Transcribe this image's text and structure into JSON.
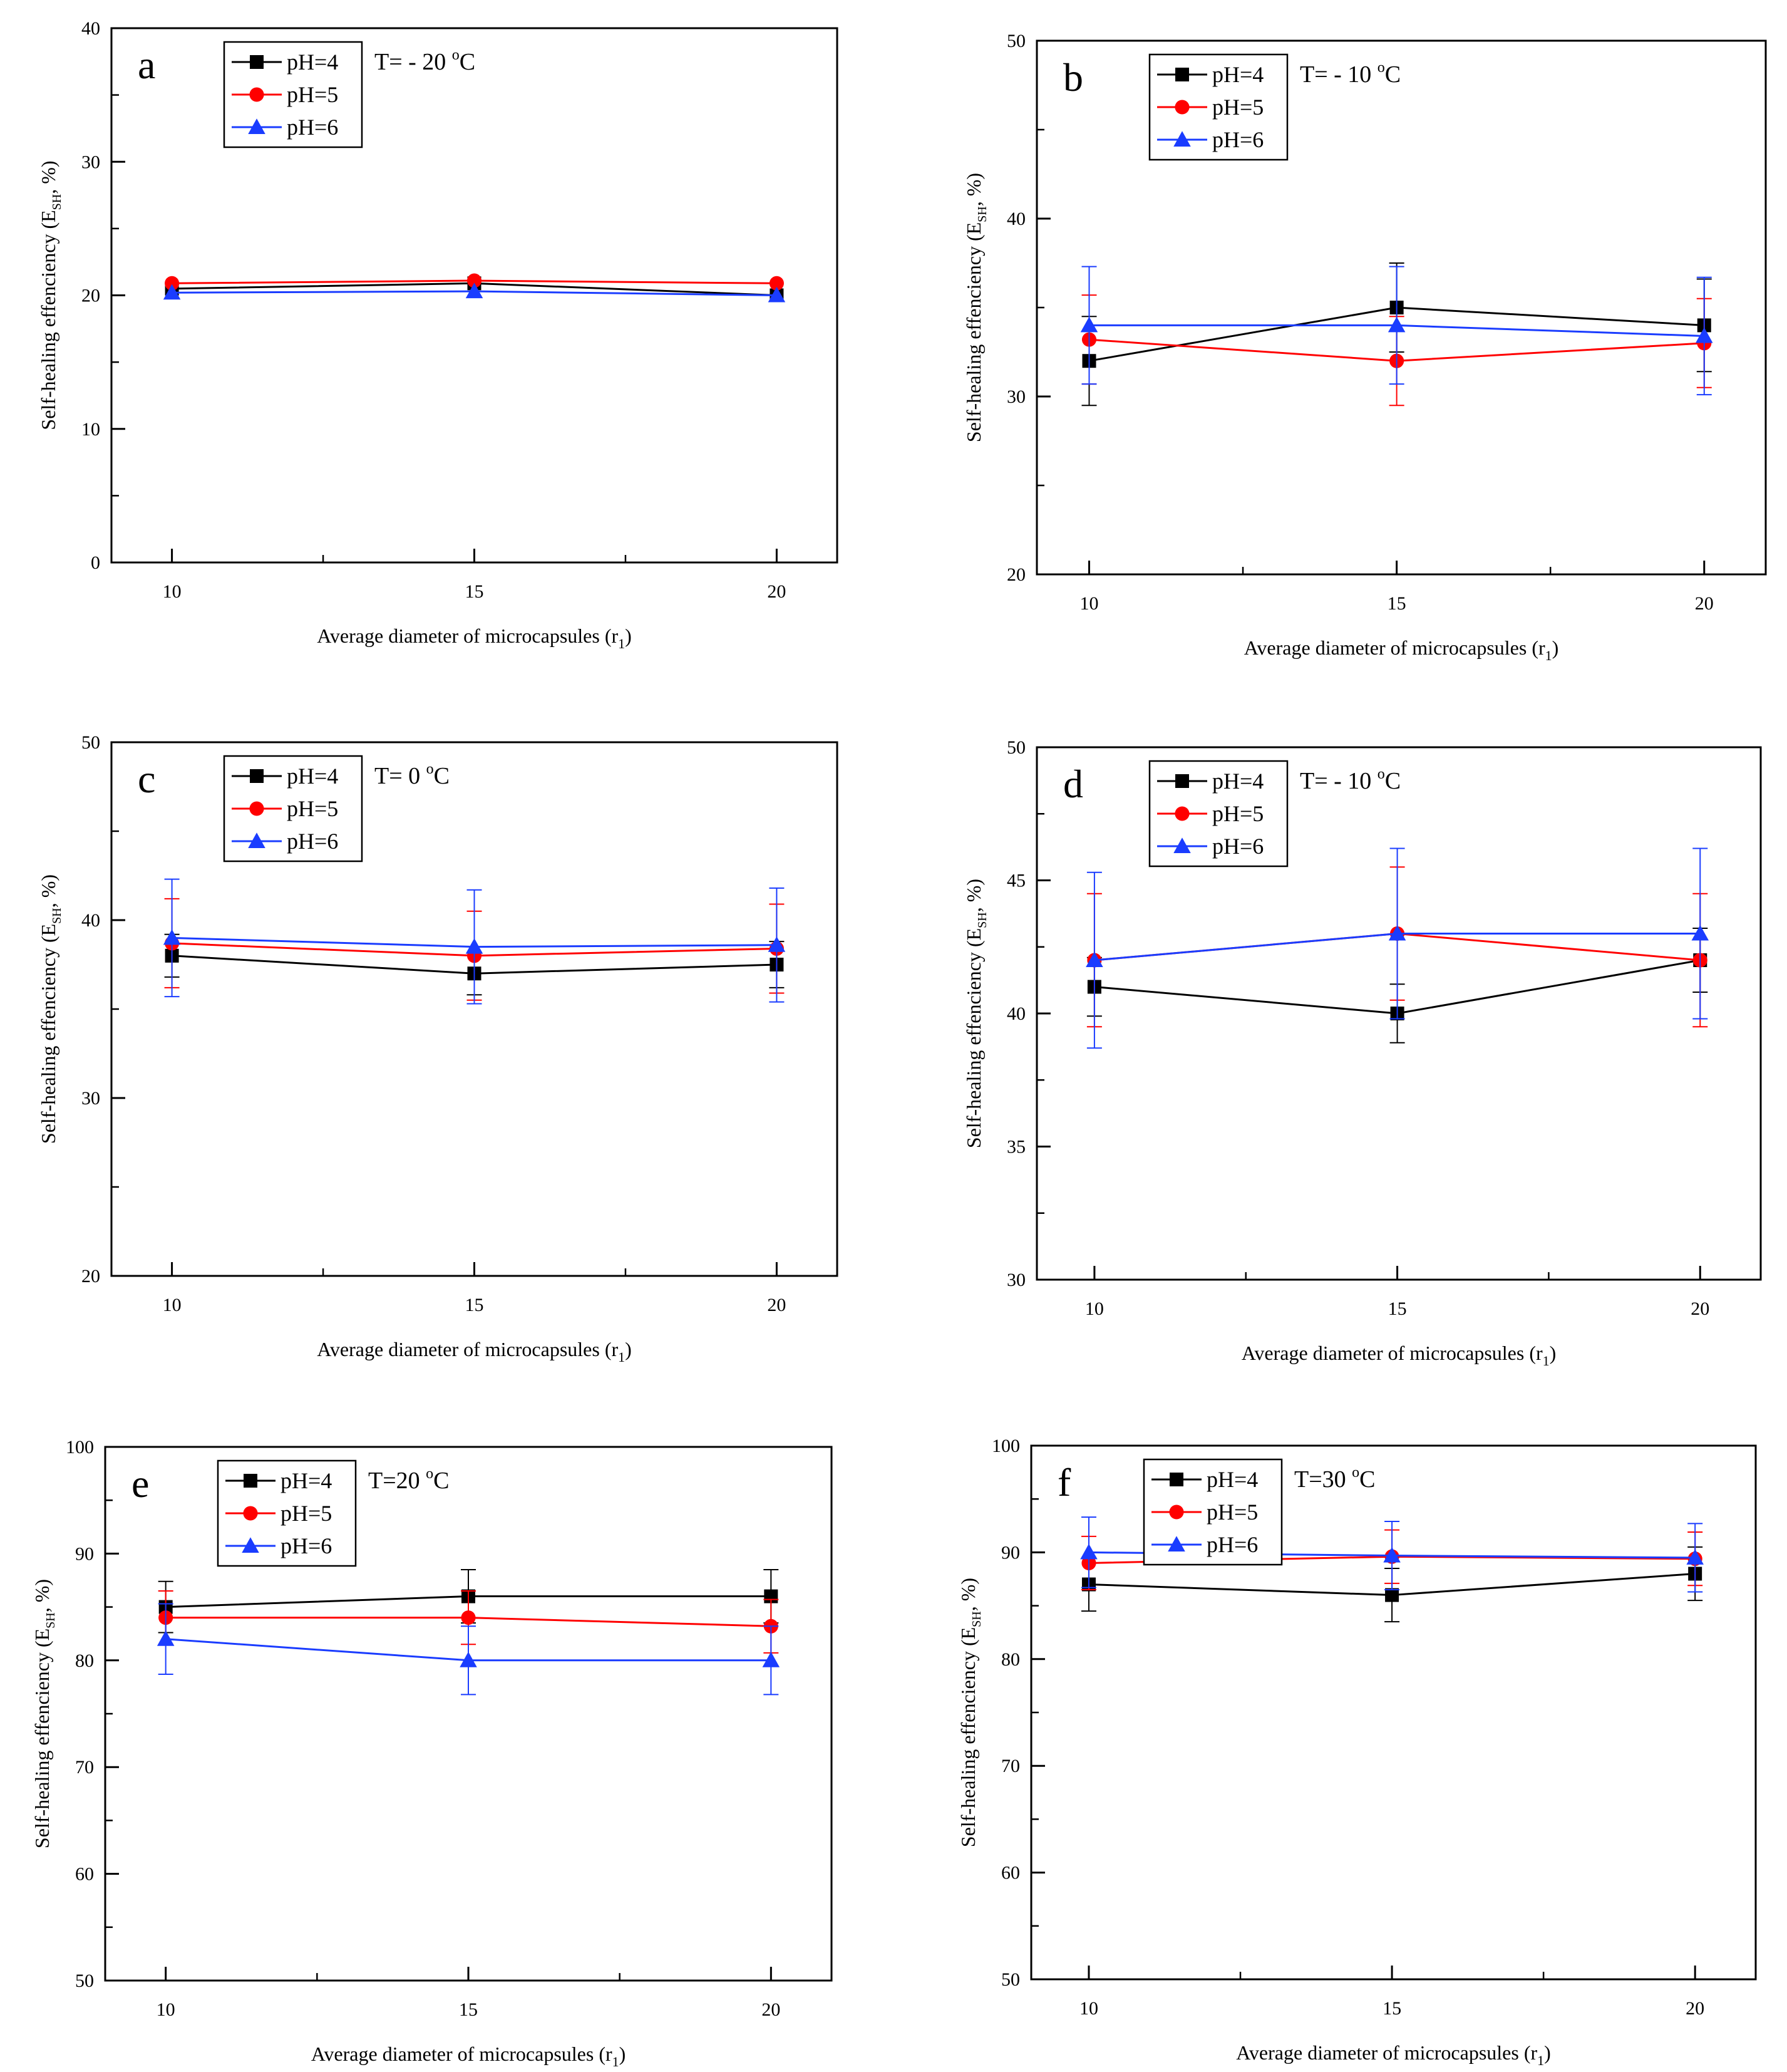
{
  "colors": {
    "series": [
      "#000000",
      "#ff0000",
      "#1a3cff"
    ],
    "axis": "#000000",
    "background": "#ffffff"
  },
  "chart_data": [
    {
      "panel": "a",
      "type": "line",
      "title": "T= - 20 °C",
      "xlabel": "Average diameter of microcapsules (r1)",
      "ylabel": "Self-healing effenciency (ESH, %)",
      "xlim": [
        9,
        21
      ],
      "ylim": [
        0,
        40
      ],
      "xticks": [
        10,
        15,
        20
      ],
      "yticks": [
        0,
        10,
        20,
        30,
        40
      ],
      "x": [
        10,
        15,
        20
      ],
      "series": [
        {
          "name": "pH=4",
          "marker": "square",
          "values": [
            20.5,
            20.9,
            20.0
          ],
          "errors": [
            0,
            0,
            0
          ]
        },
        {
          "name": "pH=5",
          "marker": "circle",
          "values": [
            20.9,
            21.1,
            20.9
          ],
          "errors": [
            0,
            0,
            0
          ]
        },
        {
          "name": "pH=6",
          "marker": "triangle",
          "values": [
            20.2,
            20.3,
            20.0
          ],
          "errors": [
            0,
            0,
            0
          ]
        }
      ]
    },
    {
      "panel": "b",
      "type": "line",
      "title": "T= - 10 °C",
      "xlabel": "Average diameter of microcapsules (r1)",
      "ylabel": "Self-healing effenciency (ESH, %)",
      "xlim": [
        9.15,
        21
      ],
      "ylim": [
        20,
        50
      ],
      "xticks": [
        10,
        15,
        20
      ],
      "yticks": [
        20,
        30,
        40,
        50
      ],
      "x": [
        10,
        15,
        20
      ],
      "series": [
        {
          "name": "pH=4",
          "marker": "square",
          "values": [
            32.0,
            35.0,
            34.0
          ],
          "errors": [
            2.5,
            2.5,
            2.6
          ]
        },
        {
          "name": "pH=5",
          "marker": "circle",
          "values": [
            33.2,
            32.0,
            33.0
          ],
          "errors": [
            2.5,
            2.5,
            2.5
          ]
        },
        {
          "name": "pH=6",
          "marker": "triangle",
          "values": [
            34.0,
            34.0,
            33.4
          ],
          "errors": [
            3.3,
            3.3,
            3.3
          ]
        }
      ]
    },
    {
      "panel": "c",
      "type": "line",
      "title": "T= 0 °C",
      "xlabel": "Average diameter of microcapsules (r1)",
      "ylabel": "Self-healing effenciency (ESH, %)",
      "xlim": [
        9,
        21
      ],
      "ylim": [
        20,
        50
      ],
      "xticks": [
        10,
        15,
        20
      ],
      "yticks": [
        20,
        30,
        40,
        50
      ],
      "x": [
        10,
        15,
        20
      ],
      "series": [
        {
          "name": "pH=4",
          "marker": "square",
          "values": [
            38.0,
            37.0,
            37.5
          ],
          "errors": [
            1.2,
            1.2,
            1.3
          ]
        },
        {
          "name": "pH=5",
          "marker": "circle",
          "values": [
            38.7,
            38.0,
            38.4
          ],
          "errors": [
            2.5,
            2.5,
            2.5
          ]
        },
        {
          "name": "pH=6",
          "marker": "triangle",
          "values": [
            39.0,
            38.5,
            38.6
          ],
          "errors": [
            3.3,
            3.2,
            3.2
          ]
        }
      ]
    },
    {
      "panel": "d",
      "type": "line",
      "title": "T= - 10 °C",
      "xlabel": "Average diameter of microcapsules (r1)",
      "ylabel": "Self-healing effenciency (ESH, %)",
      "xlim": [
        9.05,
        21
      ],
      "ylim": [
        30,
        50
      ],
      "xticks": [
        10,
        15,
        20
      ],
      "yticks": [
        30,
        35,
        40,
        45,
        50
      ],
      "x": [
        10,
        15,
        20
      ],
      "series": [
        {
          "name": "pH=4",
          "marker": "square",
          "values": [
            41.0,
            40.0,
            42.0
          ],
          "errors": [
            1.1,
            1.1,
            1.2
          ]
        },
        {
          "name": "pH=5",
          "marker": "circle",
          "values": [
            42.0,
            43.0,
            42.0
          ],
          "errors": [
            2.5,
            2.5,
            2.5
          ]
        },
        {
          "name": "pH=6",
          "marker": "triangle",
          "values": [
            42.0,
            43.0,
            43.0
          ],
          "errors": [
            3.3,
            3.2,
            3.2
          ]
        }
      ]
    },
    {
      "panel": "e",
      "type": "line",
      "title": "T=20 °C",
      "xlabel": "Average diameter of microcapsules (r1)",
      "ylabel": "Self-healing effenciency (ESH, %)",
      "xlim": [
        9,
        21
      ],
      "ylim": [
        50,
        100
      ],
      "xticks": [
        10,
        15,
        20
      ],
      "yticks": [
        50,
        60,
        70,
        80,
        90,
        100
      ],
      "x": [
        10,
        15,
        20
      ],
      "series": [
        {
          "name": "pH=4",
          "marker": "square",
          "values": [
            85.0,
            86.0,
            86.0
          ],
          "errors": [
            2.4,
            2.5,
            2.5
          ]
        },
        {
          "name": "pH=5",
          "marker": "circle",
          "values": [
            84.0,
            84.0,
            83.2
          ],
          "errors": [
            2.5,
            2.5,
            2.5
          ]
        },
        {
          "name": "pH=6",
          "marker": "triangle",
          "values": [
            82.0,
            80.0,
            80.0
          ],
          "errors": [
            3.3,
            3.2,
            3.2
          ]
        }
      ]
    },
    {
      "panel": "f",
      "type": "line",
      "title": "T=30 °C",
      "xlabel": "Average diameter of microcapsules (r1)",
      "ylabel": "Self-healing effenciency (ESH, %)",
      "xlim": [
        9.05,
        21
      ],
      "ylim": [
        50,
        100
      ],
      "xticks": [
        10,
        15,
        20
      ],
      "yticks": [
        50,
        60,
        70,
        80,
        90,
        100
      ],
      "x": [
        10,
        15,
        20
      ],
      "series": [
        {
          "name": "pH=4",
          "marker": "square",
          "values": [
            87.0,
            86.0,
            88.0
          ],
          "errors": [
            2.5,
            2.5,
            2.5
          ]
        },
        {
          "name": "pH=5",
          "marker": "circle",
          "values": [
            89.0,
            89.6,
            89.4
          ],
          "errors": [
            2.5,
            2.5,
            2.5
          ]
        },
        {
          "name": "pH=6",
          "marker": "triangle",
          "values": [
            90.0,
            89.7,
            89.5
          ],
          "errors": [
            3.3,
            3.2,
            3.2
          ]
        }
      ]
    }
  ]
}
